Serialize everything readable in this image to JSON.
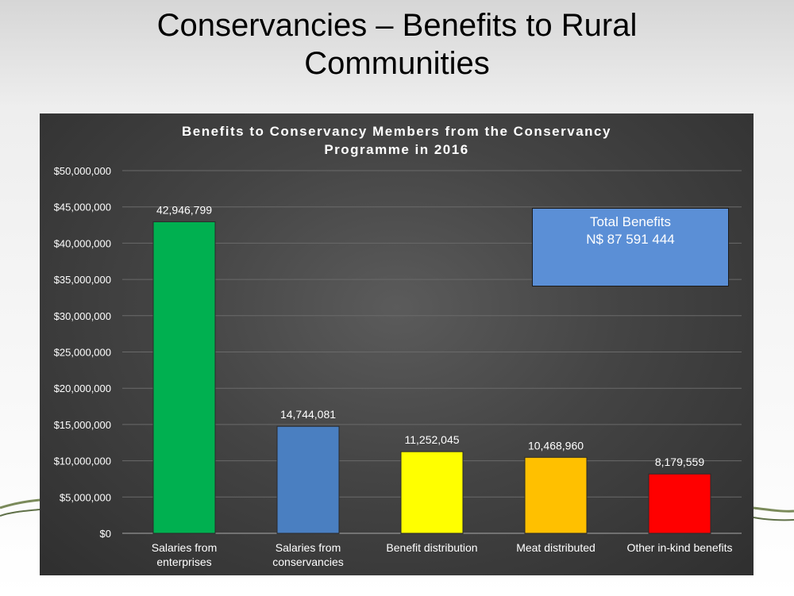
{
  "slide": {
    "title_line1": "Conservancies – Benefits to Rural",
    "title_line2": "Communities"
  },
  "total_box": {
    "line1": "Total  Benefits",
    "line2": "N$ 87 591 444",
    "color": "#5b8fd6"
  },
  "chart_data": {
    "type": "bar",
    "title_line1": "Benefits  to Conservancy Members from the Conservancy",
    "title_line2": "Programme in 2016",
    "categories": [
      [
        "Salaries from",
        "enterprises"
      ],
      [
        "Salaries from",
        "conservancies"
      ],
      [
        "Benefit distribution"
      ],
      [
        "Meat distributed"
      ],
      [
        "Other in-kind benefits"
      ]
    ],
    "values": [
      42946799,
      14744081,
      11252045,
      10468960,
      8179559
    ],
    "data_labels": [
      "42,946,799",
      "14,744,081",
      "11,252,045",
      "10,468,960",
      "8,179,559"
    ],
    "colors": [
      "#00b050",
      "#4a7fc1",
      "#ffff00",
      "#ffc000",
      "#ff0000"
    ],
    "ylim": [
      0,
      50000000
    ],
    "yticks": [
      0,
      5000000,
      10000000,
      15000000,
      20000000,
      25000000,
      30000000,
      35000000,
      40000000,
      45000000,
      50000000
    ],
    "ytick_labels": [
      "$0",
      "$5,000,000",
      "$10,000,000",
      "$15,000,000",
      "$20,000,000",
      "$25,000,000",
      "$30,000,000",
      "$35,000,000",
      "$40,000,000",
      "$45,000,000",
      "$50,000,000"
    ],
    "grid": true,
    "legend": "none",
    "xlabel": "",
    "ylabel": ""
  }
}
